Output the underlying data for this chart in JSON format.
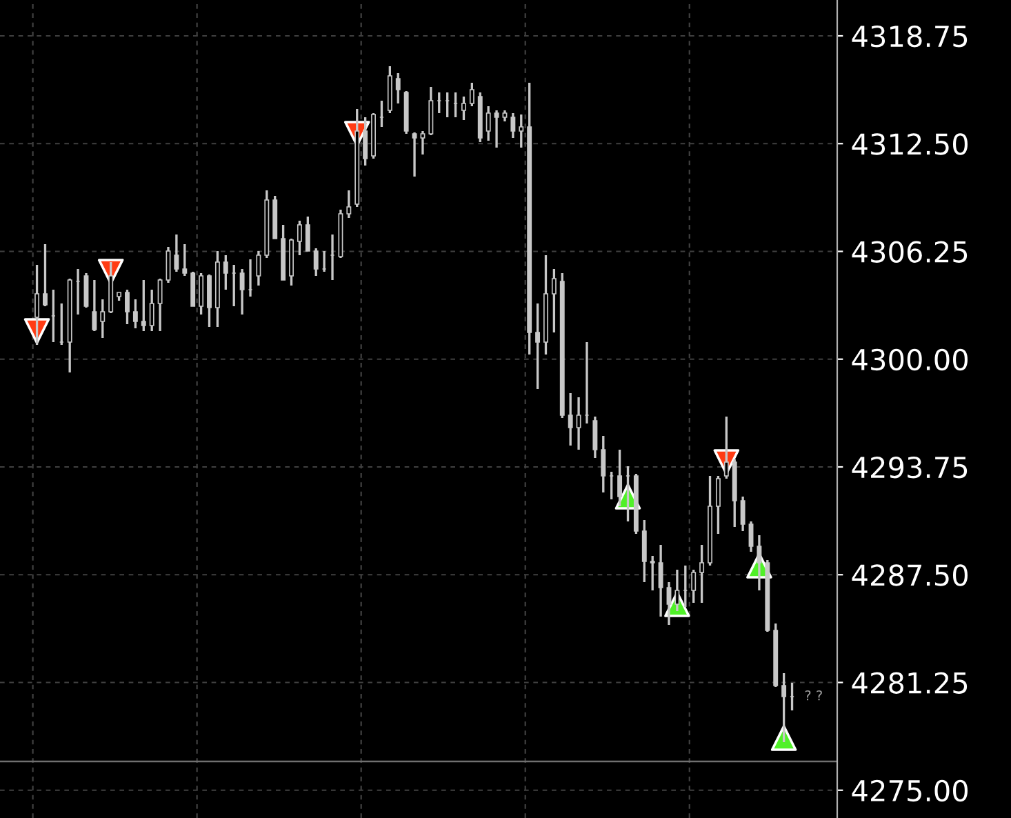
{
  "chart_data": {
    "type": "candlestick",
    "grid": true,
    "categories": [
      null,
      null,
      null,
      null,
      null,
      null,
      null,
      null,
      null,
      null,
      null,
      null,
      null,
      null,
      null,
      null,
      null,
      null,
      null,
      null,
      null,
      null,
      null,
      null,
      null,
      null,
      null,
      null,
      null,
      null,
      null,
      null,
      null,
      null,
      null,
      null,
      null,
      null,
      null,
      null,
      null,
      null,
      null,
      null,
      null,
      null,
      null,
      null,
      null,
      null,
      null,
      null,
      null,
      null,
      null,
      null,
      null,
      null,
      null,
      null,
      null,
      null,
      null,
      null,
      null,
      null,
      null,
      null,
      null,
      null,
      null,
      null,
      null,
      null,
      null,
      null,
      null,
      null,
      null,
      null,
      null,
      null,
      null,
      null,
      null,
      null,
      null,
      null,
      null,
      null,
      null,
      null,
      null,
      null,
      null,
      null,
      null,
      null,
      null,
      null,
      null,
      null
    ],
    "ohlc": [
      null,
      null,
      null,
      null,
      [
        4302.43,
        4305.47,
        4300.83,
        4303.79
      ],
      [
        4303.79,
        4306.67,
        4303.07,
        4303.15
      ],
      [
        4302.51,
        4304.03,
        4300.99,
        4302.51
      ],
      [
        4300.99,
        4303.23,
        4300.83,
        4300.99
      ],
      [
        4300.99,
        4304.67,
        4299.23,
        4304.59
      ],
      [
        4304.51,
        4305.23,
        4302.59,
        4304.51
      ],
      [
        4304.83,
        4304.99,
        4302.99,
        4303.07
      ],
      [
        4302.75,
        4304.59,
        4301.63,
        4301.71
      ],
      [
        4302.19,
        4303.47,
        4301.23,
        4302.75
      ],
      [
        4302.75,
        4305.63,
        4302.67,
        4304.83
      ],
      [
        4303.63,
        4303.87,
        4303.39,
        4303.87
      ],
      [
        4303.87,
        4304.03,
        4302.03,
        4302.75
      ],
      [
        4302.75,
        4303.47,
        4301.79,
        4302.19
      ],
      [
        4302.19,
        4304.59,
        4301.63,
        4301.95
      ],
      [
        4301.95,
        4304.03,
        4301.63,
        4303.23
      ],
      [
        4303.23,
        4304.67,
        4301.63,
        4304.59
      ],
      [
        4304.59,
        4306.51,
        4304.43,
        4306.27
      ],
      [
        4306.03,
        4307.23,
        4305.07,
        4305.23
      ],
      [
        4305.23,
        4306.67,
        4304.83,
        4304.99
      ],
      [
        4304.99,
        4305.07,
        4303.07,
        4303.07
      ],
      [
        4303.07,
        4304.99,
        4302.59,
        4304.83
      ],
      [
        4304.83,
        4304.91,
        4301.87,
        4302.99
      ],
      [
        4302.99,
        4306.27,
        4301.87,
        4305.63
      ],
      [
        4305.63,
        4306.03,
        4304.03,
        4304.99
      ],
      [
        4304.99,
        4305.47,
        4303.07,
        4304.99
      ],
      [
        4304.99,
        4305.23,
        4302.59,
        4304.03
      ],
      [
        4304.03,
        4305.79,
        4303.63,
        4304.03
      ],
      [
        4304.83,
        4306.27,
        4304.27,
        4306.03
      ],
      [
        4306.03,
        4309.79,
        4305.87,
        4309.23
      ],
      [
        4309.23,
        4309.47,
        4306.99,
        4306.99
      ],
      [
        4306.99,
        4307.79,
        4304.59,
        4304.59
      ],
      [
        4304.83,
        4306.99,
        4304.27,
        4306.91
      ],
      [
        4306.83,
        4308.03,
        4306.03,
        4307.79
      ],
      [
        4307.79,
        4308.27,
        4306.27,
        4306.27
      ],
      [
        4306.27,
        4306.43,
        4304.83,
        4305.23
      ],
      [
        4305.23,
        4306.27,
        4305.07,
        4305.23
      ],
      [
        4306.03,
        4307.23,
        4304.59,
        4306.03
      ],
      [
        4305.95,
        4308.67,
        4305.87,
        4308.43
      ],
      [
        4308.43,
        4309.79,
        4308.19,
        4308.83
      ],
      [
        4308.99,
        4314.51,
        4308.83,
        4313.23
      ],
      [
        4313.23,
        4314.03,
        4311.23,
        4311.63
      ],
      [
        4311.79,
        4314.27,
        4311.63,
        4314.19
      ],
      [
        4314.03,
        4314.99,
        4313.47,
        4314.03
      ],
      [
        4314.43,
        4316.99,
        4314.27,
        4316.43
      ],
      [
        4316.27,
        4316.59,
        4314.83,
        4315.63
      ],
      [
        4315.47,
        4315.55,
        4313.07,
        4313.23
      ],
      [
        4313.07,
        4313.15,
        4310.59,
        4312.83
      ],
      [
        4312.83,
        4313.23,
        4311.87,
        4313.07
      ],
      [
        4313.07,
        4315.79,
        4312.99,
        4314.99
      ],
      [
        4314.99,
        4315.47,
        4314.27,
        4314.99
      ],
      [
        4314.99,
        4315.47,
        4314.03,
        4314.99
      ],
      [
        4314.83,
        4315.47,
        4314.03,
        4314.83
      ],
      [
        4314.43,
        4315.23,
        4313.87,
        4314.83
      ],
      [
        4314.83,
        4316.03,
        4314.67,
        4315.63
      ],
      [
        4315.23,
        4315.47,
        4312.59,
        4312.83
      ],
      [
        4313.23,
        4314.67,
        4312.67,
        4314.27
      ],
      [
        4314.27,
        4314.43,
        4312.27,
        4314.03
      ],
      [
        4314.03,
        4314.43,
        4313.79,
        4314.27
      ],
      [
        4314.03,
        4314.27,
        4312.83,
        4313.23
      ],
      [
        4313.23,
        4314.19,
        4312.27,
        4313.47
      ],
      [
        4313.47,
        4316.03,
        4300.27,
        4301.55
      ],
      [
        4301.55,
        4303.23,
        4298.27,
        4300.99
      ],
      [
        4300.99,
        4306.03,
        4300.27,
        4303.79
      ],
      [
        4303.79,
        4305.23,
        4301.55,
        4304.67
      ],
      [
        4304.51,
        4304.99,
        4296.59,
        4296.75
      ],
      [
        4296.75,
        4298.03,
        4294.99,
        4296.03
      ],
      [
        4296.03,
        4297.79,
        4294.75,
        4296.75
      ],
      [
        4296.75,
        4300.99,
        4296.27,
        4296.75
      ],
      [
        4296.43,
        4296.67,
        4294.27,
        4294.75
      ],
      [
        4294.75,
        4295.55,
        4292.27,
        4293.23
      ],
      [
        4293.23,
        4293.47,
        4291.87,
        4293.23
      ],
      [
        4293.23,
        4294.75,
        4291.47,
        4292.03
      ],
      [
        4293.23,
        4293.79,
        4290.59,
        4293.23
      ],
      [
        4293.23,
        4293.35,
        4289.87,
        4290.03
      ],
      [
        4290.03,
        4290.67,
        4287.07,
        4288.27
      ],
      [
        4288.27,
        4288.59,
        4286.59,
        4288.19
      ],
      [
        4288.19,
        4289.23,
        4285.07,
        4286.75
      ],
      [
        4286.75,
        4287.07,
        4284.59,
        4285.79
      ],
      [
        4285.79,
        4287.79,
        4285.39,
        4286.59
      ],
      [
        4286.59,
        4288.03,
        4285.63,
        4286.59
      ],
      [
        4286.59,
        4287.79,
        4285.87,
        4287.63
      ],
      [
        4287.63,
        4289.23,
        4285.87,
        4288.19
      ],
      [
        4288.19,
        4293.23,
        4288.03,
        4291.47
      ],
      [
        4291.47,
        4293.23,
        4289.87,
        4293.07
      ],
      [
        4293.23,
        4296.67,
        4293.07,
        4294.03
      ],
      [
        4294.03,
        4294.19,
        4290.27,
        4291.79
      ],
      [
        4291.79,
        4292.03,
        4290.03,
        4290.43
      ],
      [
        4290.43,
        4290.59,
        4288.83,
        4289.15
      ],
      [
        4289.15,
        4289.79,
        4286.59,
        4288.19
      ],
      [
        4288.19,
        4288.35,
        4284.19,
        4284.27
      ],
      [
        4284.27,
        4284.67,
        4280.99,
        4281.07
      ],
      [
        4281.07,
        4281.79,
        4277.79,
        4280.43
      ],
      [
        4280.43,
        4281.23,
        4279.63,
        4280.43
      ],
      null,
      null,
      null,
      null,
      null
    ],
    "color": "#c8c8c8",
    "series": [
      {
        "type": "scatter",
        "marker": "triangle_down",
        "color": "#ff3c14",
        "values": [
          null,
          null,
          null,
          null,
          4301.63,
          null,
          null,
          null,
          null,
          null,
          null,
          null,
          null,
          4305.07,
          null,
          null,
          null,
          null,
          null,
          null,
          null,
          null,
          null,
          null,
          null,
          null,
          null,
          null,
          null,
          null,
          null,
          null,
          null,
          null,
          null,
          null,
          null,
          null,
          null,
          null,
          null,
          null,
          null,
          4313.07,
          null,
          null,
          null,
          null,
          null,
          null,
          null,
          null,
          null,
          null,
          null,
          null,
          null,
          null,
          null,
          null,
          null,
          null,
          null,
          null,
          null,
          null,
          null,
          null,
          null,
          null,
          null,
          null,
          null,
          null,
          null,
          null,
          null,
          null,
          null,
          null,
          null,
          null,
          null,
          null,
          null,
          null,
          null,
          null,
          4294.03,
          null,
          null,
          null,
          null,
          null,
          null,
          null,
          null,
          null,
          null,
          null,
          null,
          null
        ]
      },
      {
        "type": "scatter",
        "marker": "triangle",
        "color": "#50f028",
        "values": [
          null,
          null,
          null,
          null,
          null,
          null,
          null,
          null,
          null,
          null,
          null,
          null,
          null,
          null,
          null,
          null,
          null,
          null,
          null,
          null,
          null,
          null,
          null,
          null,
          null,
          null,
          null,
          null,
          null,
          null,
          null,
          null,
          null,
          null,
          null,
          null,
          null,
          null,
          null,
          null,
          null,
          null,
          null,
          null,
          null,
          null,
          null,
          null,
          null,
          null,
          null,
          null,
          null,
          null,
          null,
          null,
          null,
          null,
          null,
          null,
          null,
          null,
          null,
          null,
          null,
          null,
          null,
          null,
          null,
          null,
          null,
          null,
          null,
          null,
          null,
          null,
          4292.03,
          null,
          null,
          null,
          null,
          null,
          4285.79,
          null,
          null,
          null,
          null,
          null,
          null,
          null,
          null,
          null,
          4288.03,
          null,
          null,
          4278.03,
          null,
          null,
          null,
          null,
          null,
          null
        ]
      }
    ],
    "ylim": [
      4273.39,
      4320.83
    ],
    "yticks": [
      {
        "value": 4275,
        "label": "4275.00"
      },
      4281.25,
      {
        "value": 4287.5,
        "label": "4287.50"
      },
      4293.75,
      {
        "value": 4300,
        "label": "4300.00"
      },
      4306.25,
      {
        "value": 4312.5,
        "label": "4312.50"
      },
      4318.75
    ],
    "ref_lines": [
      {
        "axis": "y",
        "value": 4276.67,
        "color": "#707070"
      }
    ],
    "annotations": [
      "? ?"
    ]
  }
}
